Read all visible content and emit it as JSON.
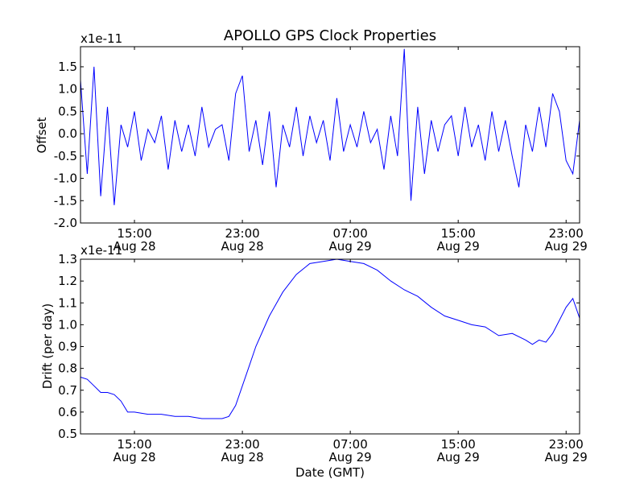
{
  "title": "APOLLO GPS Clock Properties",
  "line_color": "#0000ff",
  "chart_data": [
    {
      "type": "line",
      "name": "offset",
      "scale_label": "x1e-11",
      "ylabel": "Offset",
      "xlabel": "",
      "ylim": [
        -2.0,
        1.95
      ],
      "yticks": [
        -2.0,
        -1.5,
        -1.0,
        -0.5,
        0.0,
        0.5,
        1.0,
        1.5
      ],
      "ytick_labels": [
        "-2.0",
        "-1.5",
        "-1.0",
        "-0.5",
        "0.0",
        "0.5",
        "1.0",
        "1.5"
      ],
      "xlim": [
        "2014-08-28T11:00",
        "2014-08-30T00:00"
      ],
      "xticks": [
        {
          "time": "2014-08-28T15:00",
          "line1": "15:00",
          "line2": "Aug 28"
        },
        {
          "time": "2014-08-28T23:00",
          "line1": "23:00",
          "line2": "Aug 28"
        },
        {
          "time": "2014-08-29T07:00",
          "line1": "07:00",
          "line2": "Aug 29"
        },
        {
          "time": "2014-08-29T15:00",
          "line1": "15:00",
          "line2": "Aug 29"
        },
        {
          "time": "2014-08-29T23:00",
          "line1": "23:00",
          "line2": "Aug 29"
        }
      ],
      "series": [
        {
          "x": [
            "2014-08-28T11:00",
            "2014-08-28T11:30",
            "2014-08-28T12:00",
            "2014-08-28T12:30",
            "2014-08-28T13:00",
            "2014-08-28T13:30",
            "2014-08-28T14:00",
            "2014-08-28T14:30",
            "2014-08-28T15:00",
            "2014-08-28T15:30",
            "2014-08-28T16:00",
            "2014-08-28T16:30",
            "2014-08-28T17:00",
            "2014-08-28T17:30",
            "2014-08-28T18:00",
            "2014-08-28T18:30",
            "2014-08-28T19:00",
            "2014-08-28T19:30",
            "2014-08-28T20:00",
            "2014-08-28T20:30",
            "2014-08-28T21:00",
            "2014-08-28T21:30",
            "2014-08-28T22:00",
            "2014-08-28T22:30",
            "2014-08-28T23:00",
            "2014-08-28T23:30",
            "2014-08-29T00:00",
            "2014-08-29T00:30",
            "2014-08-29T01:00",
            "2014-08-29T01:30",
            "2014-08-29T02:00",
            "2014-08-29T02:30",
            "2014-08-29T03:00",
            "2014-08-29T03:30",
            "2014-08-29T04:00",
            "2014-08-29T04:30",
            "2014-08-29T05:00",
            "2014-08-29T05:30",
            "2014-08-29T06:00",
            "2014-08-29T06:30",
            "2014-08-29T07:00",
            "2014-08-29T07:30",
            "2014-08-29T08:00",
            "2014-08-29T08:30",
            "2014-08-29T09:00",
            "2014-08-29T09:30",
            "2014-08-29T10:00",
            "2014-08-29T10:30",
            "2014-08-29T11:00",
            "2014-08-29T11:30",
            "2014-08-29T12:00",
            "2014-08-29T12:30",
            "2014-08-29T13:00",
            "2014-08-29T13:30",
            "2014-08-29T14:00",
            "2014-08-29T14:30",
            "2014-08-29T15:00",
            "2014-08-29T15:30",
            "2014-08-29T16:00",
            "2014-08-29T16:30",
            "2014-08-29T17:00",
            "2014-08-29T17:30",
            "2014-08-29T18:00",
            "2014-08-29T18:30",
            "2014-08-29T19:00",
            "2014-08-29T19:30",
            "2014-08-29T20:00",
            "2014-08-29T20:30",
            "2014-08-29T21:00",
            "2014-08-29T21:30",
            "2014-08-29T22:00",
            "2014-08-29T22:30",
            "2014-08-29T23:00",
            "2014-08-29T23:30",
            "2014-08-30T00:00"
          ],
          "y": [
            1.2,
            -0.9,
            1.5,
            -1.4,
            0.6,
            -1.6,
            0.2,
            -0.3,
            0.5,
            -0.6,
            0.1,
            -0.2,
            0.4,
            -0.8,
            0.3,
            -0.4,
            0.2,
            -0.5,
            0.6,
            -0.3,
            0.1,
            0.2,
            -0.6,
            0.9,
            1.3,
            -0.4,
            0.3,
            -0.7,
            0.5,
            -1.2,
            0.2,
            -0.3,
            0.6,
            -0.5,
            0.4,
            -0.2,
            0.3,
            -0.6,
            0.8,
            -0.4,
            0.2,
            -0.3,
            0.5,
            -0.2,
            0.1,
            -0.8,
            0.4,
            -0.5,
            1.9,
            -1.5,
            0.6,
            -0.9,
            0.3,
            -0.4,
            0.2,
            0.4,
            -0.5,
            0.6,
            -0.3,
            0.2,
            -0.6,
            0.5,
            -0.4,
            0.3,
            -0.5,
            -1.2,
            0.2,
            -0.4,
            0.6,
            -0.3,
            0.9,
            0.5,
            -0.6,
            -0.9,
            0.3
          ]
        }
      ]
    },
    {
      "type": "line",
      "name": "drift",
      "scale_label": "x1e-11",
      "ylabel": "Drift (per day)",
      "xlabel": "Date (GMT)",
      "ylim": [
        0.5,
        1.3
      ],
      "yticks": [
        0.5,
        0.6,
        0.7,
        0.8,
        0.9,
        1.0,
        1.1,
        1.2,
        1.3
      ],
      "ytick_labels": [
        "0.5",
        "0.6",
        "0.7",
        "0.8",
        "0.9",
        "1.0",
        "1.1",
        "1.2",
        "1.3"
      ],
      "xlim": [
        "2014-08-28T11:00",
        "2014-08-30T00:00"
      ],
      "xticks": [
        {
          "time": "2014-08-28T15:00",
          "line1": "15:00",
          "line2": "Aug 28"
        },
        {
          "time": "2014-08-28T23:00",
          "line1": "23:00",
          "line2": "Aug 28"
        },
        {
          "time": "2014-08-29T07:00",
          "line1": "07:00",
          "line2": "Aug 29"
        },
        {
          "time": "2014-08-29T15:00",
          "line1": "15:00",
          "line2": "Aug 29"
        },
        {
          "time": "2014-08-29T23:00",
          "line1": "23:00",
          "line2": "Aug 29"
        }
      ],
      "series": [
        {
          "x": [
            "2014-08-28T11:00",
            "2014-08-28T11:30",
            "2014-08-28T12:00",
            "2014-08-28T12:30",
            "2014-08-28T13:00",
            "2014-08-28T13:30",
            "2014-08-28T14:00",
            "2014-08-28T14:30",
            "2014-08-28T15:00",
            "2014-08-28T16:00",
            "2014-08-28T17:00",
            "2014-08-28T18:00",
            "2014-08-28T19:00",
            "2014-08-28T20:00",
            "2014-08-28T21:00",
            "2014-08-28T21:30",
            "2014-08-28T22:00",
            "2014-08-28T22:30",
            "2014-08-28T23:00",
            "2014-08-28T23:30",
            "2014-08-29T00:00",
            "2014-08-29T00:30",
            "2014-08-29T01:00",
            "2014-08-29T02:00",
            "2014-08-29T03:00",
            "2014-08-29T04:00",
            "2014-08-29T05:00",
            "2014-08-29T06:00",
            "2014-08-29T07:00",
            "2014-08-29T08:00",
            "2014-08-29T09:00",
            "2014-08-29T10:00",
            "2014-08-29T11:00",
            "2014-08-29T12:00",
            "2014-08-29T13:00",
            "2014-08-29T14:00",
            "2014-08-29T15:00",
            "2014-08-29T16:00",
            "2014-08-29T17:00",
            "2014-08-29T18:00",
            "2014-08-29T19:00",
            "2014-08-29T20:00",
            "2014-08-29T20:30",
            "2014-08-29T21:00",
            "2014-08-29T21:30",
            "2014-08-29T22:00",
            "2014-08-29T22:30",
            "2014-08-29T23:00",
            "2014-08-29T23:30",
            "2014-08-30T00:00"
          ],
          "y": [
            0.76,
            0.75,
            0.72,
            0.69,
            0.69,
            0.68,
            0.65,
            0.6,
            0.6,
            0.59,
            0.59,
            0.58,
            0.58,
            0.57,
            0.57,
            0.57,
            0.58,
            0.63,
            0.72,
            0.81,
            0.9,
            0.97,
            1.04,
            1.15,
            1.23,
            1.28,
            1.29,
            1.3,
            1.29,
            1.28,
            1.25,
            1.2,
            1.16,
            1.13,
            1.08,
            1.04,
            1.02,
            1.0,
            0.99,
            0.95,
            0.96,
            0.93,
            0.91,
            0.93,
            0.92,
            0.96,
            1.02,
            1.08,
            1.12,
            1.03
          ]
        }
      ]
    }
  ]
}
